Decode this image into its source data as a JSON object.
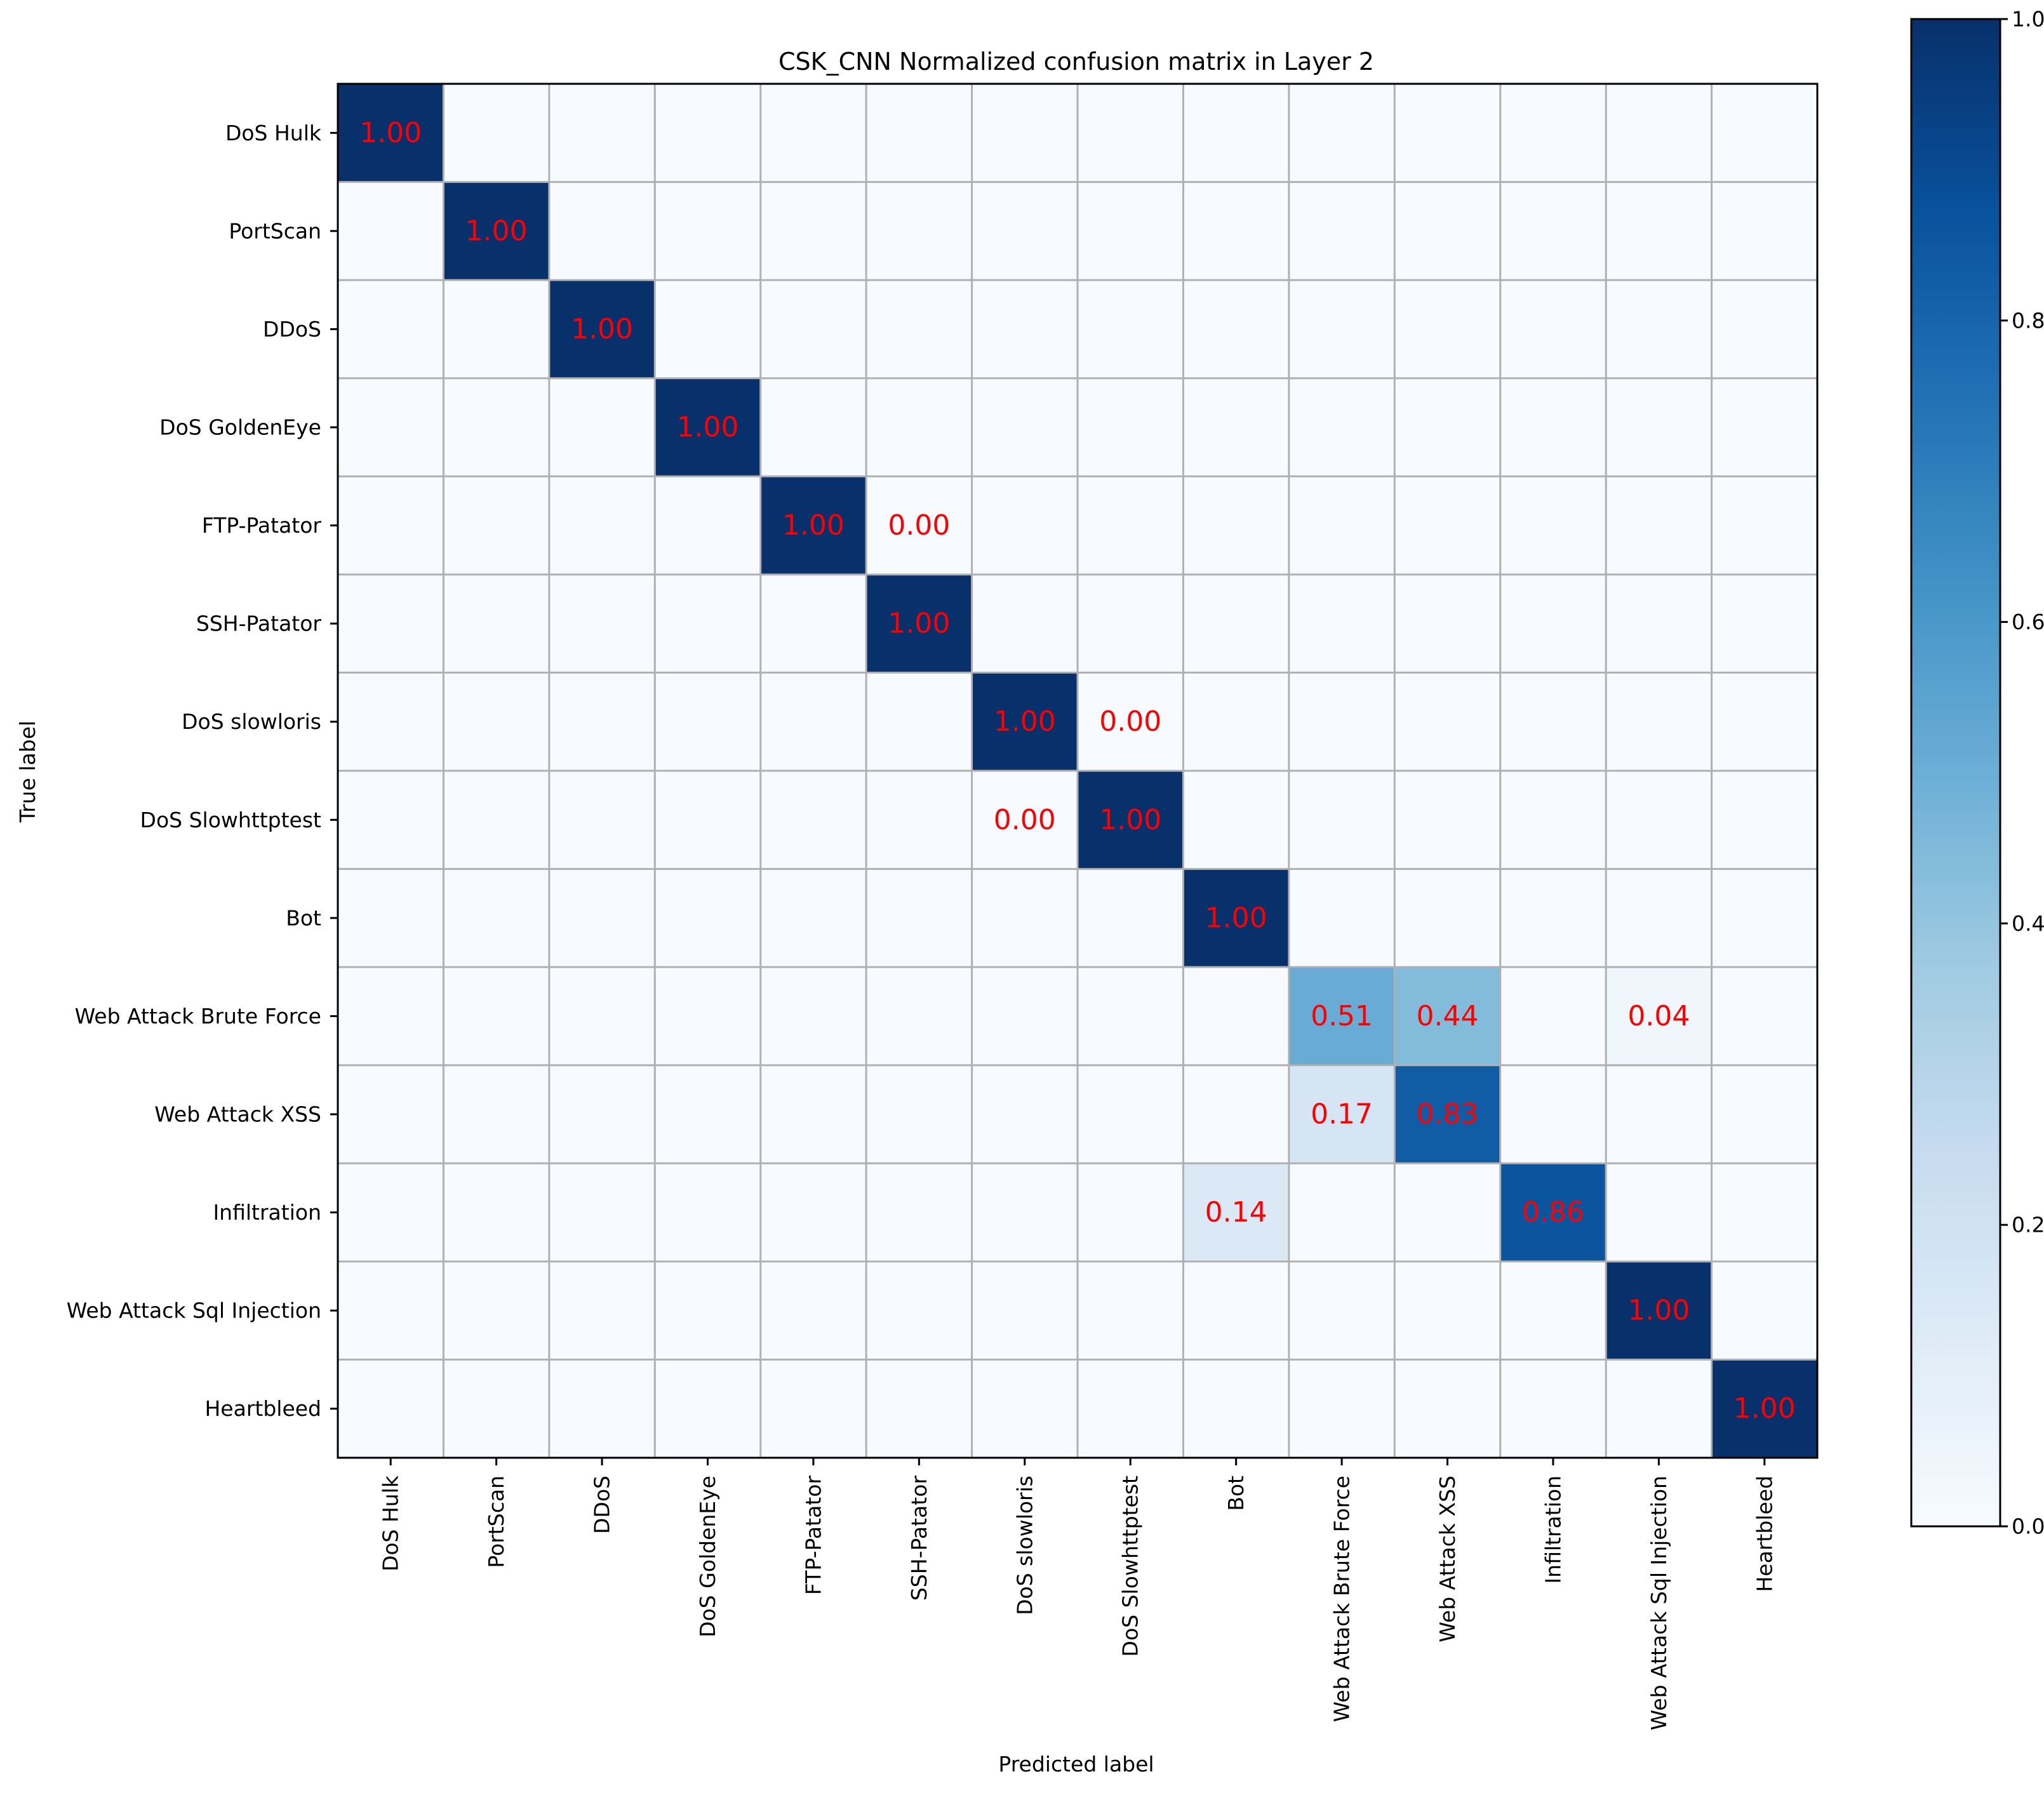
{
  "chart_data": {
    "type": "heatmap",
    "title": "CSK_CNN Normalized confusion matrix in Layer 2",
    "xlabel": "Predicted label",
    "ylabel": "True label",
    "row_labels": [
      "DoS Hulk",
      "PortScan",
      "DDoS",
      "DoS GoldenEye",
      "FTP-Patator",
      "SSH-Patator",
      "DoS slowloris",
      "DoS Slowhttptest",
      "Bot",
      "Web Attack Brute Force",
      "Web Attack XSS",
      "Infiltration",
      "Web Attack Sql Injection",
      "Heartbleed"
    ],
    "col_labels": [
      "DoS Hulk",
      "PortScan",
      "DDoS",
      "DoS GoldenEye",
      "FTP-Patator",
      "SSH-Patator",
      "DoS slowloris",
      "DoS Slowhttptest",
      "Bot",
      "Web Attack Brute Force",
      "Web Attack XSS",
      "Infiltration",
      "Web Attack Sql Injection",
      "Heartbleed"
    ],
    "cells": [
      {
        "row": 0,
        "col": 0,
        "value": 1.0,
        "label": "1.00"
      },
      {
        "row": 1,
        "col": 1,
        "value": 1.0,
        "label": "1.00"
      },
      {
        "row": 2,
        "col": 2,
        "value": 1.0,
        "label": "1.00"
      },
      {
        "row": 3,
        "col": 3,
        "value": 1.0,
        "label": "1.00"
      },
      {
        "row": 4,
        "col": 4,
        "value": 1.0,
        "label": "1.00"
      },
      {
        "row": 4,
        "col": 5,
        "value": 0.0,
        "label": "0.00"
      },
      {
        "row": 5,
        "col": 5,
        "value": 1.0,
        "label": "1.00"
      },
      {
        "row": 6,
        "col": 6,
        "value": 1.0,
        "label": "1.00"
      },
      {
        "row": 6,
        "col": 7,
        "value": 0.0,
        "label": "0.00"
      },
      {
        "row": 7,
        "col": 6,
        "value": 0.0,
        "label": "0.00"
      },
      {
        "row": 7,
        "col": 7,
        "value": 1.0,
        "label": "1.00"
      },
      {
        "row": 8,
        "col": 8,
        "value": 1.0,
        "label": "1.00"
      },
      {
        "row": 9,
        "col": 9,
        "value": 0.51,
        "label": "0.51"
      },
      {
        "row": 9,
        "col": 10,
        "value": 0.44,
        "label": "0.44"
      },
      {
        "row": 9,
        "col": 12,
        "value": 0.04,
        "label": "0.04"
      },
      {
        "row": 10,
        "col": 9,
        "value": 0.17,
        "label": "0.17"
      },
      {
        "row": 10,
        "col": 10,
        "value": 0.83,
        "label": "0.83"
      },
      {
        "row": 11,
        "col": 8,
        "value": 0.14,
        "label": "0.14"
      },
      {
        "row": 11,
        "col": 11,
        "value": 0.86,
        "label": "0.86"
      },
      {
        "row": 12,
        "col": 12,
        "value": 1.0,
        "label": "1.00"
      },
      {
        "row": 13,
        "col": 13,
        "value": 1.0,
        "label": "1.00"
      }
    ],
    "colorbar": {
      "range": [
        0.0,
        1.0
      ],
      "ticks": [
        "0.0",
        "0.2",
        "0.4",
        "0.6",
        "0.8",
        "1.0"
      ],
      "colormap": "Blues"
    },
    "cell_text_color": "#ff0000",
    "grid": true
  }
}
